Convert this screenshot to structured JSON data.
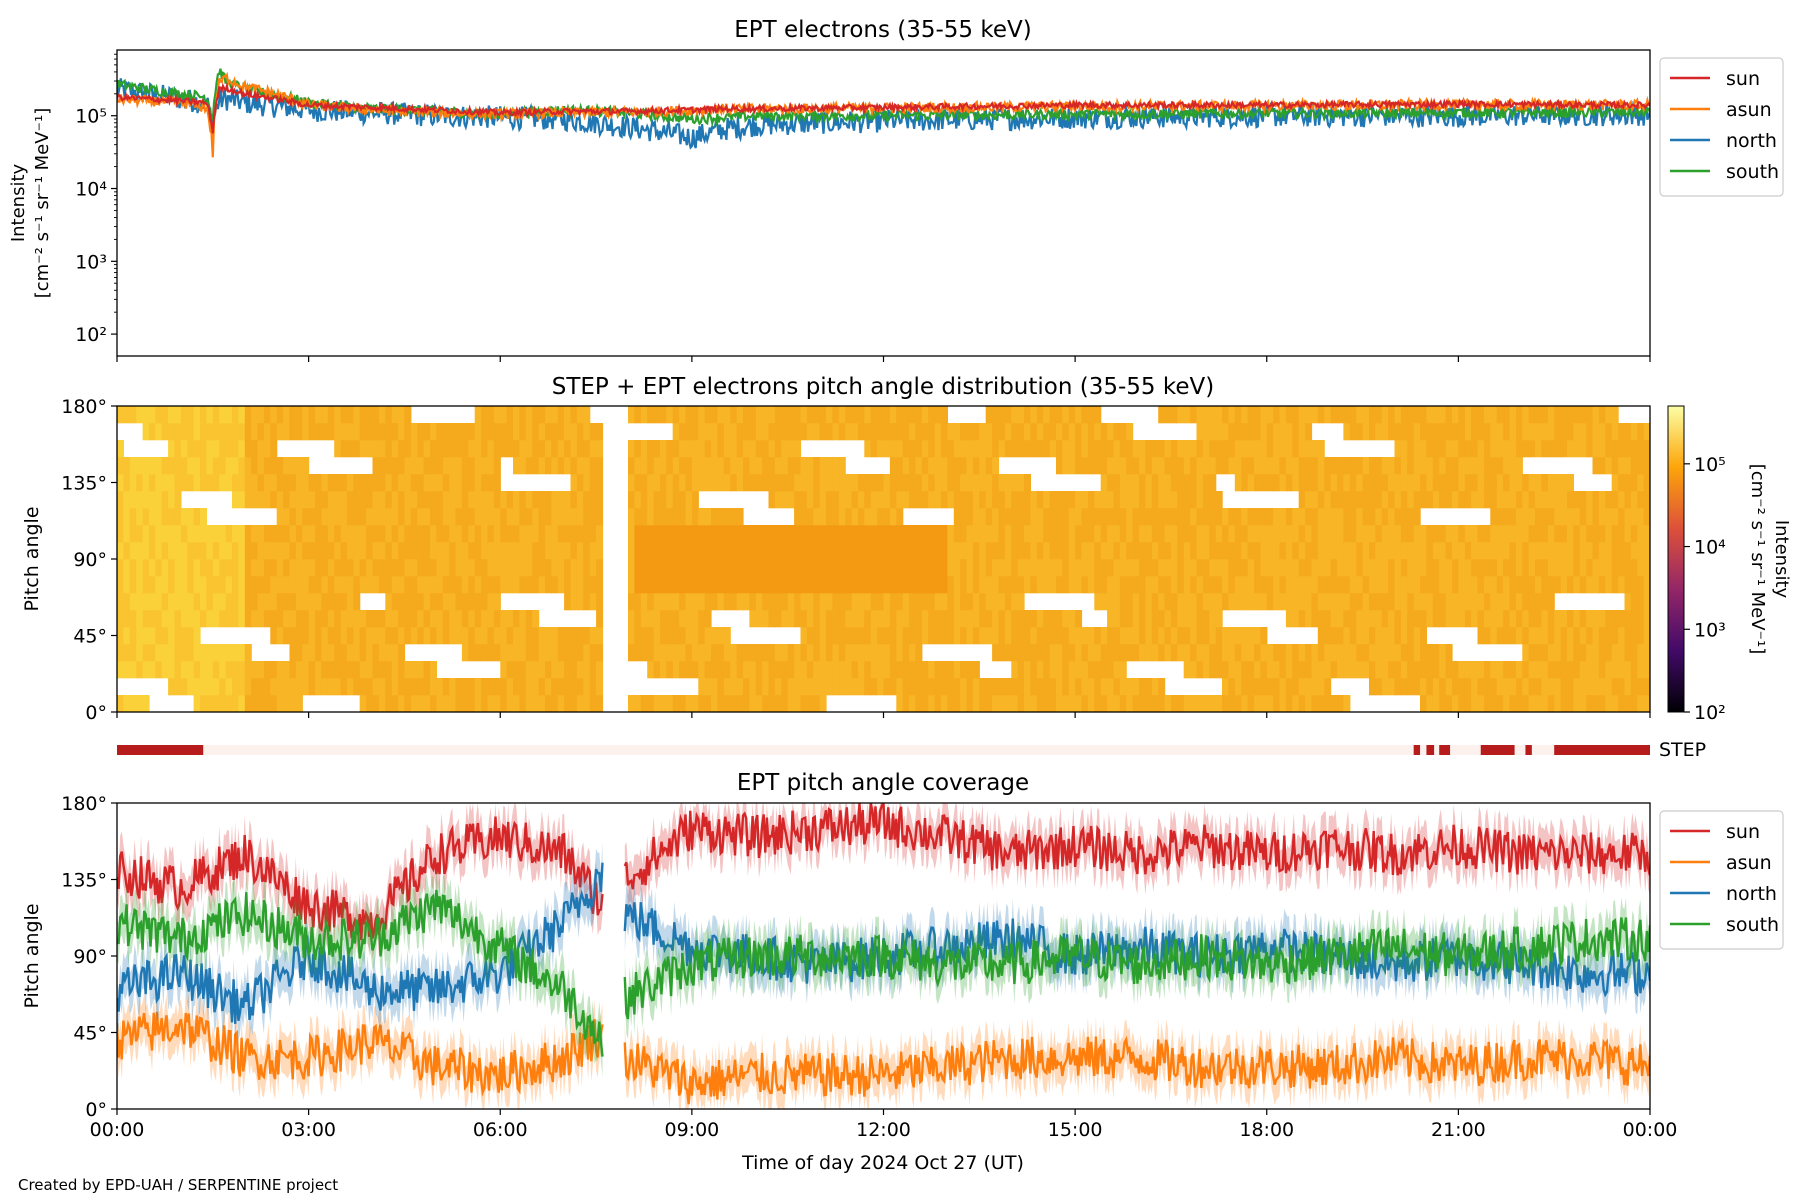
{
  "chart_data": [
    {
      "type": "line",
      "title": "EPT electrons (35-55 keV)",
      "ylabel": [
        "Intensity",
        "[cm⁻² s⁻¹ sr⁻¹ MeV⁻¹]"
      ],
      "yscale": "log",
      "ylim": [
        50,
        800000
      ],
      "yticks": [
        "10²",
        "10³",
        "10⁴",
        "10⁵"
      ],
      "xlim": [
        0,
        24
      ],
      "x_hours": [
        0,
        0.5,
        1,
        1.4,
        1.5,
        1.6,
        1.7,
        2,
        3,
        4,
        5,
        6,
        7,
        8,
        8.5,
        9,
        9.5,
        10,
        12,
        15,
        18,
        21,
        24
      ],
      "legend": "outside upper right",
      "series": [
        {
          "name": "sun",
          "color": "#d62728",
          "values": [
            180000,
            170000,
            160000,
            150000,
            60000,
            230000,
            240000,
            200000,
            140000,
            130000,
            120000,
            110000,
            115000,
            115000,
            118000,
            120000,
            125000,
            125000,
            130000,
            140000,
            140000,
            145000,
            140000
          ]
        },
        {
          "name": "asun",
          "color": "#ff7f0e",
          "values": [
            170000,
            160000,
            150000,
            130000,
            30000,
            280000,
            330000,
            250000,
            140000,
            120000,
            110000,
            105000,
            110000,
            112000,
            115000,
            120000,
            125000,
            125000,
            128000,
            135000,
            138000,
            142000,
            140000
          ]
        },
        {
          "name": "north",
          "color": "#1f77b4",
          "values": [
            230000,
            200000,
            170000,
            150000,
            80000,
            160000,
            170000,
            150000,
            120000,
            110000,
            100000,
            95000,
            90000,
            70000,
            60000,
            50000,
            65000,
            75000,
            85000,
            95000,
            100000,
            100000,
            105000
          ]
        },
        {
          "name": "south",
          "color": "#2ca02c",
          "values": [
            270000,
            230000,
            200000,
            180000,
            90000,
            420000,
            300000,
            230000,
            150000,
            125000,
            115000,
            105000,
            120000,
            110000,
            100000,
            90000,
            95000,
            100000,
            100000,
            105000,
            108000,
            110000,
            112000
          ]
        }
      ]
    },
    {
      "type": "heatmap",
      "title": "STEP + EPT electrons pitch angle distribution (35-55 keV)",
      "ylabel": "Pitch angle",
      "ylim": [
        0,
        180
      ],
      "yticks": [
        "0°",
        "45°",
        "90°",
        "135°",
        "180°"
      ],
      "colorbar": {
        "label": [
          "Intensity",
          "[cm⁻² s⁻¹ sr⁻¹ MeV⁻¹]"
        ],
        "scale": "log",
        "range": [
          100,
          500000
        ],
        "ticks": [
          "10²",
          "10³",
          "10⁴",
          "10⁵"
        ],
        "colormap": "inferno"
      },
      "data_gap_hours": [
        7.6,
        7.95
      ]
    },
    {
      "type": "bar",
      "label": "STEP",
      "color": "#b71c1c",
      "background": "#fdf1ee",
      "active_intervals_hours": [
        [
          0,
          1.35
        ],
        [
          20.3,
          20.4
        ],
        [
          20.5,
          20.62
        ],
        [
          20.7,
          20.87
        ],
        [
          21.35,
          21.88
        ],
        [
          22.05,
          22.15
        ],
        [
          22.5,
          24
        ]
      ]
    },
    {
      "type": "area",
      "title": "EPT pitch angle coverage",
      "ylabel": "Pitch angle",
      "xlabel": "Time of day 2024 Oct 27 (UT)",
      "ylim": [
        0,
        180
      ],
      "yticks": [
        "0°",
        "45°",
        "90°",
        "135°",
        "180°"
      ],
      "xticks": [
        "00:00",
        "03:00",
        "06:00",
        "09:00",
        "12:00",
        "15:00",
        "18:00",
        "21:00",
        "00:00"
      ],
      "xlim": [
        0,
        24
      ],
      "data_gap_hours": [
        7.6,
        7.95
      ],
      "band_halfwidth_deg": 12,
      "legend": "outside upper right",
      "x_hours": [
        0,
        1,
        2,
        3,
        4,
        5,
        6,
        7,
        7.6,
        7.95,
        9,
        10,
        11,
        12,
        13,
        14,
        15,
        16,
        17,
        18,
        19,
        20,
        21,
        22,
        23,
        24
      ],
      "series": [
        {
          "name": "sun",
          "color": "#d62728",
          "values": [
            140,
            130,
            150,
            120,
            110,
            150,
            160,
            150,
            120,
            135,
            165,
            160,
            165,
            168,
            160,
            150,
            155,
            150,
            155,
            150,
            155,
            150,
            155,
            150,
            150,
            150
          ]
        },
        {
          "name": "asun",
          "color": "#ff7f0e",
          "values": [
            40,
            50,
            30,
            30,
            40,
            25,
            20,
            30,
            45,
            30,
            15,
            20,
            20,
            20,
            25,
            30,
            30,
            30,
            25,
            25,
            25,
            30,
            25,
            30,
            30,
            25
          ]
        },
        {
          "name": "north",
          "color": "#1f77b4",
          "values": [
            70,
            80,
            60,
            90,
            70,
            70,
            80,
            110,
            140,
            115,
            95,
            90,
            85,
            90,
            95,
            100,
            90,
            95,
            90,
            95,
            90,
            85,
            90,
            85,
            80,
            80
          ]
        },
        {
          "name": "south",
          "color": "#2ca02c",
          "values": [
            110,
            100,
            115,
            100,
            100,
            120,
            95,
            70,
            40,
            65,
            85,
            90,
            90,
            90,
            85,
            85,
            90,
            85,
            90,
            85,
            90,
            95,
            90,
            95,
            100,
            100
          ]
        }
      ]
    }
  ],
  "footer": {
    "credit": "Created by EPD-UAH / SERPENTINE project"
  }
}
